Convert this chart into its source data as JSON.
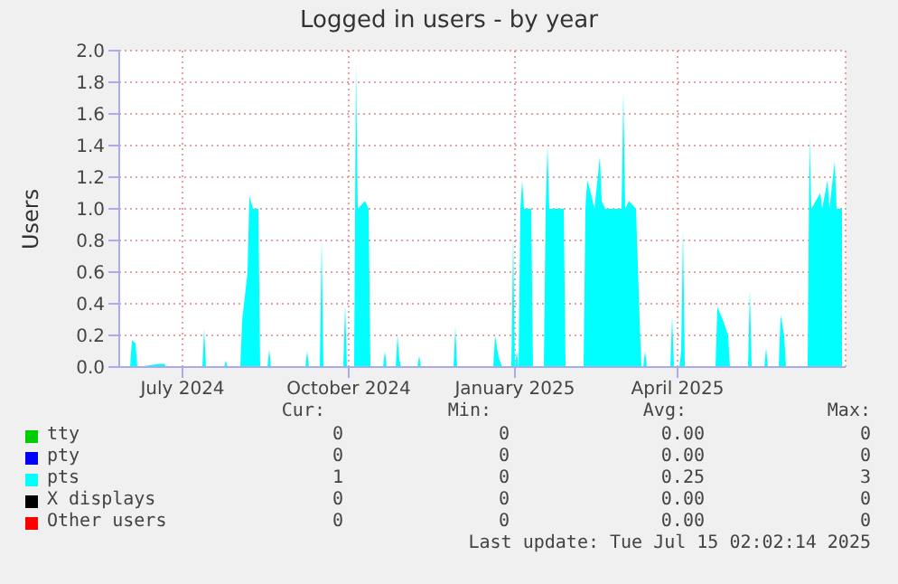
{
  "chart_data": {
    "type": "area",
    "title": "Logged in users - by year",
    "ylabel": "Users",
    "xlim": [
      "2024-05-27",
      "2025-07-03"
    ],
    "ylim": [
      0,
      2
    ],
    "xticks": [
      {
        "value": "2024-07-01",
        "label": "July 2024"
      },
      {
        "value": "2024-10-01",
        "label": "October 2024"
      },
      {
        "value": "2025-01-01",
        "label": "January 2025"
      },
      {
        "value": "2025-04-01",
        "label": "April 2025"
      }
    ],
    "yticks": [
      {
        "value": 0,
        "label": "0.0"
      },
      {
        "value": 0.2,
        "label": "0.2"
      },
      {
        "value": 0.4,
        "label": "0.4"
      },
      {
        "value": 0.6,
        "label": "0.6"
      },
      {
        "value": 0.8,
        "label": "0.8"
      },
      {
        "value": 1,
        "label": "1.0"
      },
      {
        "value": 1.2,
        "label": "1.2"
      },
      {
        "value": 1.4,
        "label": "1.4"
      },
      {
        "value": 1.6,
        "label": "1.6"
      },
      {
        "value": 1.8,
        "label": "1.8"
      },
      {
        "value": 2,
        "label": "2.0"
      }
    ],
    "grid": true,
    "legend": "bottom",
    "marker": "none",
    "series": [
      {
        "name": "tty",
        "color": "#00cc00"
      },
      {
        "name": "pty",
        "color": "#0000ff"
      },
      {
        "name": "pts",
        "color": "#00ffff",
        "x": [
          "2024-06-02",
          "2024-06-03",
          "2024-06-05",
          "2024-06-06",
          "2024-06-18",
          "2024-06-21",
          "2024-06-22",
          "2024-07-12",
          "2024-07-13",
          "2024-07-14",
          "2024-07-24",
          "2024-07-25",
          "2024-07-26",
          "2024-08-02",
          "2024-08-03",
          "2024-08-06",
          "2024-08-07",
          "2024-08-09",
          "2024-08-12",
          "2024-08-13",
          "2024-08-17",
          "2024-08-18",
          "2024-08-19",
          "2024-09-07",
          "2024-09-08",
          "2024-09-09",
          "2024-09-15",
          "2024-09-16",
          "2024-09-17",
          "2024-09-28",
          "2024-09-29",
          "2024-09-30",
          "2024-10-04",
          "2024-10-05",
          "2024-10-06",
          "2024-10-10",
          "2024-10-12",
          "2024-10-13",
          "2024-10-20",
          "2024-10-21",
          "2024-10-22",
          "2024-10-27",
          "2024-10-28",
          "2024-10-29",
          "2024-10-30",
          "2024-11-08",
          "2024-11-09",
          "2024-11-10",
          "2024-11-28",
          "2024-11-29",
          "2024-11-30",
          "2024-12-20",
          "2024-12-21",
          "2024-12-23",
          "2024-12-25",
          "2024-12-30",
          "2024-12-31",
          "2025-01-01",
          "2025-01-02",
          "2025-01-03",
          "2025-01-04",
          "2025-01-05",
          "2025-01-06",
          "2025-01-10",
          "2025-01-11",
          "2025-01-17",
          "2025-01-18",
          "2025-01-19",
          "2025-01-20",
          "2025-01-28",
          "2025-01-29",
          "2025-02-08",
          "2025-02-09",
          "2025-02-10",
          "2025-02-12",
          "2025-02-14",
          "2025-02-17",
          "2025-02-18",
          "2025-02-20",
          "2025-03-01",
          "2025-03-02",
          "2025-03-03",
          "2025-03-05",
          "2025-03-09",
          "2025-03-11",
          "2025-03-12",
          "2025-03-13",
          "2025-03-14",
          "2025-03-15",
          "2025-03-28",
          "2025-03-29",
          "2025-03-30",
          "2025-04-02",
          "2025-04-03",
          "2025-04-04",
          "2025-04-05",
          "2025-04-22",
          "2025-04-23",
          "2025-04-26",
          "2025-04-29",
          "2025-04-30",
          "2025-05-10",
          "2025-05-11",
          "2025-05-12",
          "2025-05-19",
          "2025-05-20",
          "2025-05-21",
          "2025-05-27",
          "2025-05-28",
          "2025-05-30",
          "2025-05-31",
          "2025-06-12",
          "2025-06-13",
          "2025-06-14",
          "2025-06-19",
          "2025-06-20",
          "2025-06-23",
          "2025-06-24",
          "2025-06-27",
          "2025-06-28",
          "2025-07-01"
        ],
        "values": [
          0,
          0.17,
          0.15,
          0,
          0.02,
          0.02,
          0,
          0,
          0.24,
          0,
          0,
          0.04,
          0,
          0,
          0.29,
          0.6,
          1.08,
          1,
          1,
          0,
          0,
          0.11,
          0,
          0,
          0.1,
          0,
          0,
          0.8,
          0,
          0,
          0.4,
          0,
          0,
          1.92,
          1,
          1.05,
          1,
          0,
          0,
          0.1,
          0,
          0,
          0.2,
          0.05,
          0,
          0,
          0.07,
          0,
          0,
          0.25,
          0,
          0,
          0.2,
          0.06,
          0,
          0,
          0.83,
          0,
          0.1,
          0,
          1,
          1.18,
          1,
          1,
          0,
          0,
          1,
          1.4,
          1,
          1,
          0,
          0,
          1,
          1.18,
          1.1,
          1,
          1.33,
          1.05,
          1,
          1,
          1.73,
          1,
          1.05,
          1,
          0.3,
          0,
          0,
          0.1,
          0,
          0,
          0.32,
          0,
          0,
          0.1,
          0.87,
          0,
          0,
          0.38,
          0.3,
          0.2,
          0,
          0,
          0.49,
          0,
          0,
          0.12,
          0,
          0,
          0.33,
          0.2,
          0,
          0,
          1.46,
          1,
          1.1,
          1,
          1.18,
          1,
          1.3,
          1,
          1
        ]
      },
      {
        "name": "X displays",
        "color": "#000000"
      },
      {
        "name": "Other users",
        "color": "#ff0000"
      }
    ],
    "annotations": [
      "Cur:",
      "Min:",
      "Avg:",
      "Max:",
      "0",
      "0",
      "0.00",
      "0",
      "0",
      "0",
      "0.00",
      "0",
      "1",
      "0",
      "0.25",
      "3",
      "0",
      "0",
      "0.00",
      "0",
      "0",
      "0",
      "0.00",
      "0",
      "Last update: Tue Jul 15 02:02:14 2025"
    ]
  }
}
